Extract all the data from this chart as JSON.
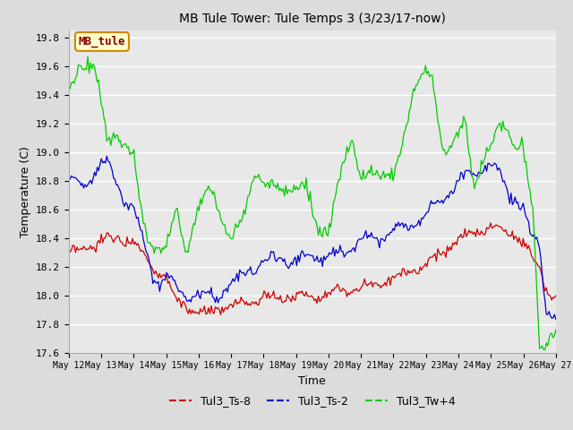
{
  "title": "MB Tule Tower: Tule Temps 3 (3/23/17-now)",
  "xlabel": "Time",
  "ylabel": "Temperature (C)",
  "ylim": [
    17.6,
    19.85
  ],
  "yticks": [
    17.6,
    17.8,
    18.0,
    18.2,
    18.4,
    18.6,
    18.8,
    19.0,
    19.2,
    19.4,
    19.6,
    19.8
  ],
  "xtick_labels": [
    "May 12",
    "May 13",
    "May 14",
    "May 15",
    "May 16",
    "May 17",
    "May 18",
    "May 19",
    "May 20",
    "May 21",
    "May 22",
    "May 23",
    "May 24",
    "May 25",
    "May 26",
    "May 27"
  ],
  "bg_color": "#dcdcdc",
  "plot_bg_color": "#e8e8e8",
  "grid_color": "white",
  "line_colors": [
    "#cc0000",
    "#0000cc",
    "#00cc00"
  ],
  "legend_labels": [
    "Tul3_Ts-8",
    "Tul3_Ts-2",
    "Tul3_Tw+4"
  ],
  "box_label": "MB_tule",
  "box_facecolor": "#ffffcc",
  "box_edgecolor": "#cc8800",
  "box_textcolor": "#880000"
}
